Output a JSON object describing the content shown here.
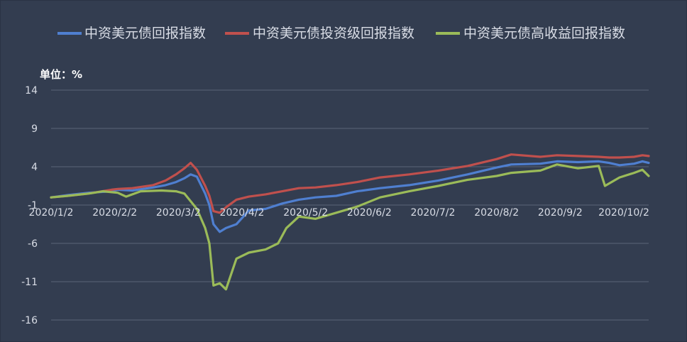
{
  "chart_data": {
    "type": "line",
    "unit_label": "单位：%",
    "ylim": [
      -16,
      14
    ],
    "y_ticks": [
      14,
      9,
      4,
      -1,
      -6,
      -11,
      -16
    ],
    "x_tick_labels": [
      "2020/1/2",
      "2020/2/2",
      "2020/3/2",
      "2020/4/2",
      "2020/5/2",
      "2020/6/2",
      "2020/7/2",
      "2020/8/2",
      "2020/9/2",
      "2020/10/2"
    ],
    "x_range": [
      "2020-01-02",
      "2020-10-15"
    ],
    "grid": true,
    "legend_position": "top",
    "series": [
      {
        "name": "中资美元债回报指数",
        "color": "#4f7fd0",
        "points": [
          [
            "2020-01-02",
            0.0
          ],
          [
            "2020-01-10",
            0.3
          ],
          [
            "2020-01-20",
            0.6
          ],
          [
            "2020-01-31",
            0.8
          ],
          [
            "2020-02-03",
            1.0
          ],
          [
            "2020-02-10",
            0.9
          ],
          [
            "2020-02-20",
            1.3
          ],
          [
            "2020-02-26",
            1.6
          ],
          [
            "2020-03-02",
            2.0
          ],
          [
            "2020-03-06",
            2.5
          ],
          [
            "2020-03-09",
            3.0
          ],
          [
            "2020-03-12",
            2.7
          ],
          [
            "2020-03-16",
            0.5
          ],
          [
            "2020-03-18",
            -1.0
          ],
          [
            "2020-03-20",
            -3.5
          ],
          [
            "2020-03-23",
            -4.5
          ],
          [
            "2020-03-26",
            -4.0
          ],
          [
            "2020-03-31",
            -3.5
          ],
          [
            "2020-04-06",
            -1.7
          ],
          [
            "2020-04-14",
            -1.5
          ],
          [
            "2020-04-22",
            -0.8
          ],
          [
            "2020-04-30",
            -0.3
          ],
          [
            "2020-05-08",
            0.0
          ],
          [
            "2020-05-18",
            0.2
          ],
          [
            "2020-05-28",
            0.8
          ],
          [
            "2020-06-08",
            1.2
          ],
          [
            "2020-06-22",
            1.6
          ],
          [
            "2020-07-06",
            2.2
          ],
          [
            "2020-07-20",
            3.0
          ],
          [
            "2020-08-03",
            3.9
          ],
          [
            "2020-08-10",
            4.3
          ],
          [
            "2020-08-24",
            4.4
          ],
          [
            "2020-09-01",
            4.7
          ],
          [
            "2020-09-11",
            4.6
          ],
          [
            "2020-09-21",
            4.7
          ],
          [
            "2020-09-26",
            4.5
          ],
          [
            "2020-10-01",
            4.2
          ],
          [
            "2020-10-08",
            4.4
          ],
          [
            "2020-10-12",
            4.7
          ],
          [
            "2020-10-15",
            4.5
          ]
        ]
      },
      {
        "name": "中资美元债投资级回报指数",
        "color": "#c0504d",
        "points": [
          [
            "2020-01-02",
            0.0
          ],
          [
            "2020-01-10",
            0.2
          ],
          [
            "2020-01-20",
            0.5
          ],
          [
            "2020-01-31",
            1.0
          ],
          [
            "2020-02-03",
            1.1
          ],
          [
            "2020-02-10",
            1.2
          ],
          [
            "2020-02-20",
            1.6
          ],
          [
            "2020-02-26",
            2.2
          ],
          [
            "2020-03-02",
            3.0
          ],
          [
            "2020-03-06",
            3.8
          ],
          [
            "2020-03-09",
            4.5
          ],
          [
            "2020-03-12",
            3.6
          ],
          [
            "2020-03-16",
            1.5
          ],
          [
            "2020-03-18",
            0.2
          ],
          [
            "2020-03-20",
            -1.8
          ],
          [
            "2020-03-23",
            -2.0
          ],
          [
            "2020-03-26",
            -1.3
          ],
          [
            "2020-03-31",
            -0.3
          ],
          [
            "2020-04-06",
            0.1
          ],
          [
            "2020-04-14",
            0.4
          ],
          [
            "2020-04-22",
            0.8
          ],
          [
            "2020-04-30",
            1.2
          ],
          [
            "2020-05-08",
            1.3
          ],
          [
            "2020-05-18",
            1.6
          ],
          [
            "2020-05-28",
            2.0
          ],
          [
            "2020-06-08",
            2.6
          ],
          [
            "2020-06-22",
            3.0
          ],
          [
            "2020-07-06",
            3.5
          ],
          [
            "2020-07-20",
            4.1
          ],
          [
            "2020-08-03",
            5.0
          ],
          [
            "2020-08-10",
            5.6
          ],
          [
            "2020-08-24",
            5.3
          ],
          [
            "2020-09-01",
            5.5
          ],
          [
            "2020-09-11",
            5.4
          ],
          [
            "2020-09-21",
            5.3
          ],
          [
            "2020-09-26",
            5.2
          ],
          [
            "2020-10-01",
            5.2
          ],
          [
            "2020-10-08",
            5.3
          ],
          [
            "2020-10-12",
            5.5
          ],
          [
            "2020-10-15",
            5.4
          ]
        ]
      },
      {
        "name": "中资美元债高收益回报指数",
        "color": "#9bbb59",
        "points": [
          [
            "2020-01-02",
            0.0
          ],
          [
            "2020-01-10",
            0.2
          ],
          [
            "2020-01-20",
            0.5
          ],
          [
            "2020-01-27",
            0.8
          ],
          [
            "2020-02-03",
            0.6
          ],
          [
            "2020-02-07",
            0.1
          ],
          [
            "2020-02-14",
            0.8
          ],
          [
            "2020-02-24",
            0.9
          ],
          [
            "2020-03-02",
            0.8
          ],
          [
            "2020-03-06",
            0.5
          ],
          [
            "2020-03-12",
            -1.5
          ],
          [
            "2020-03-16",
            -4.0
          ],
          [
            "2020-03-18",
            -6.0
          ],
          [
            "2020-03-20",
            -11.5
          ],
          [
            "2020-03-23",
            -11.2
          ],
          [
            "2020-03-26",
            -12.0
          ],
          [
            "2020-03-31",
            -8.0
          ],
          [
            "2020-04-06",
            -7.2
          ],
          [
            "2020-04-14",
            -6.8
          ],
          [
            "2020-04-20",
            -6.0
          ],
          [
            "2020-04-24",
            -4.0
          ],
          [
            "2020-04-30",
            -2.5
          ],
          [
            "2020-05-08",
            -2.8
          ],
          [
            "2020-05-18",
            -2.0
          ],
          [
            "2020-05-28",
            -1.2
          ],
          [
            "2020-06-08",
            0.0
          ],
          [
            "2020-06-22",
            0.8
          ],
          [
            "2020-07-06",
            1.5
          ],
          [
            "2020-07-20",
            2.3
          ],
          [
            "2020-08-03",
            2.8
          ],
          [
            "2020-08-10",
            3.2
          ],
          [
            "2020-08-24",
            3.5
          ],
          [
            "2020-09-01",
            4.3
          ],
          [
            "2020-09-11",
            3.8
          ],
          [
            "2020-09-21",
            4.1
          ],
          [
            "2020-09-24",
            1.5
          ],
          [
            "2020-10-01",
            2.6
          ],
          [
            "2020-10-08",
            3.2
          ],
          [
            "2020-10-12",
            3.6
          ],
          [
            "2020-10-15",
            2.8
          ]
        ]
      }
    ]
  }
}
